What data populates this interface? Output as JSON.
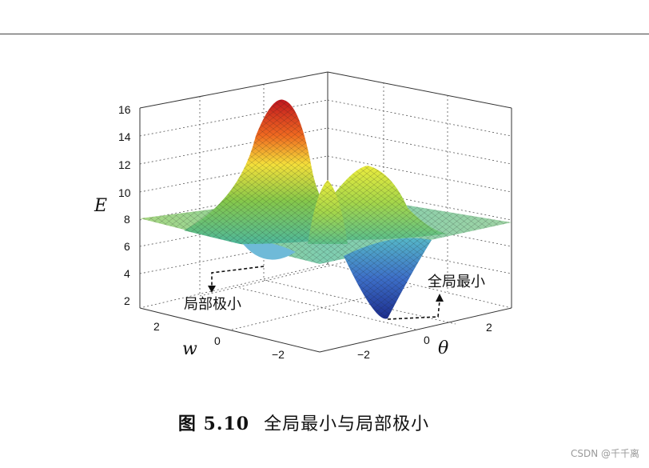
{
  "figure": {
    "caption_number": "图 5.10",
    "caption_text": "全局最小与局部极小",
    "z_axis_label": "E",
    "w_axis_label": "w",
    "theta_axis_label": "θ",
    "z_ticks": [
      "16",
      "14",
      "12",
      "10",
      "8",
      "6",
      "4",
      "2"
    ],
    "w_ticks": [
      "2",
      "0",
      "−2"
    ],
    "theta_ticks": [
      "−2",
      "0",
      "2"
    ],
    "local_min_label": "局部极小",
    "global_min_label": "全局最小"
  },
  "watermark": "CSDN @千千离"
}
